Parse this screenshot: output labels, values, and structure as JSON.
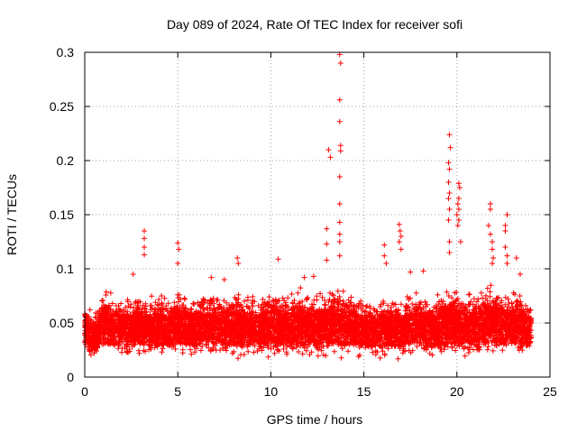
{
  "chart_data": {
    "type": "scatter",
    "title": "Day 089 of 2024, Rate Of TEC Index for receiver sofi",
    "xlabel": "GPS time / hours",
    "ylabel": "ROTI / TECUs",
    "xlim": [
      0,
      25
    ],
    "ylim": [
      0,
      0.3
    ],
    "xticks": [
      "0",
      "5",
      "10",
      "15",
      "20",
      "25"
    ],
    "yticks": [
      "0",
      "0.05",
      "0.1",
      "0.15",
      "0.2",
      "0.25",
      "0.3"
    ],
    "grid": true,
    "marker": "+",
    "color": "#ff0000",
    "series": [
      {
        "name": "ROTI",
        "band": {
          "x": [
            0,
            0.5,
            1,
            1.5,
            2,
            2.5,
            3,
            3.5,
            4,
            4.5,
            5,
            5.5,
            6,
            6.5,
            7,
            7.5,
            8,
            8.5,
            9,
            9.5,
            10,
            10.5,
            11,
            11.5,
            12,
            12.5,
            13,
            13.5,
            14,
            14.5,
            15,
            15.5,
            16,
            16.5,
            17,
            17.5,
            18,
            18.5,
            19,
            19.5,
            20,
            20.5,
            21,
            21.5,
            22,
            22.5,
            23,
            23.5,
            24
          ],
          "low": [
            0.02,
            0.015,
            0.015,
            0.015,
            0.015,
            0.015,
            0.015,
            0.015,
            0.015,
            0.012,
            0.015,
            0.015,
            0.015,
            0.015,
            0.015,
            0.015,
            0.015,
            0.015,
            0.015,
            0.015,
            0.015,
            0.015,
            0.015,
            0.015,
            0.015,
            0.015,
            0.015,
            0.015,
            0.015,
            0.015,
            0.015,
            0.015,
            0.012,
            0.015,
            0.015,
            0.015,
            0.015,
            0.015,
            0.012,
            0.015,
            0.015,
            0.015,
            0.015,
            0.015,
            0.015,
            0.015,
            0.015,
            0.015,
            0.018
          ],
          "high": [
            0.072,
            0.06,
            0.085,
            0.08,
            0.075,
            0.078,
            0.082,
            0.075,
            0.08,
            0.078,
            0.085,
            0.08,
            0.075,
            0.08,
            0.085,
            0.08,
            0.083,
            0.078,
            0.082,
            0.08,
            0.085,
            0.082,
            0.08,
            0.085,
            0.078,
            0.08,
            0.085,
            0.088,
            0.085,
            0.08,
            0.075,
            0.07,
            0.085,
            0.078,
            0.075,
            0.08,
            0.082,
            0.08,
            0.085,
            0.088,
            0.085,
            0.082,
            0.085,
            0.088,
            0.09,
            0.085,
            0.085,
            0.08,
            0.072
          ]
        },
        "peaks": [
          {
            "x": 3.2,
            "y": 0.135
          },
          {
            "x": 3.2,
            "y": 0.128
          },
          {
            "x": 3.2,
            "y": 0.12
          },
          {
            "x": 3.2,
            "y": 0.113
          },
          {
            "x": 5.0,
            "y": 0.124
          },
          {
            "x": 5.05,
            "y": 0.118
          },
          {
            "x": 5.0,
            "y": 0.105
          },
          {
            "x": 8.2,
            "y": 0.11
          },
          {
            "x": 8.25,
            "y": 0.105
          },
          {
            "x": 10.4,
            "y": 0.109
          },
          {
            "x": 13.1,
            "y": 0.21
          },
          {
            "x": 13.2,
            "y": 0.203
          },
          {
            "x": 13.7,
            "y": 0.298
          },
          {
            "x": 13.75,
            "y": 0.29
          },
          {
            "x": 13.7,
            "y": 0.256
          },
          {
            "x": 13.7,
            "y": 0.236
          },
          {
            "x": 13.75,
            "y": 0.214
          },
          {
            "x": 13.75,
            "y": 0.209
          },
          {
            "x": 13.7,
            "y": 0.185
          },
          {
            "x": 13.7,
            "y": 0.16
          },
          {
            "x": 13.7,
            "y": 0.143
          },
          {
            "x": 13.7,
            "y": 0.132
          },
          {
            "x": 13.7,
            "y": 0.125
          },
          {
            "x": 13.7,
            "y": 0.112
          },
          {
            "x": 13.0,
            "y": 0.137
          },
          {
            "x": 13.0,
            "y": 0.123
          },
          {
            "x": 13.0,
            "y": 0.108
          },
          {
            "x": 16.1,
            "y": 0.122
          },
          {
            "x": 16.1,
            "y": 0.112
          },
          {
            "x": 16.2,
            "y": 0.105
          },
          {
            "x": 16.9,
            "y": 0.141
          },
          {
            "x": 16.95,
            "y": 0.135
          },
          {
            "x": 17.0,
            "y": 0.13
          },
          {
            "x": 16.9,
            "y": 0.125
          },
          {
            "x": 17.0,
            "y": 0.118
          },
          {
            "x": 19.6,
            "y": 0.224
          },
          {
            "x": 19.65,
            "y": 0.212
          },
          {
            "x": 19.55,
            "y": 0.198
          },
          {
            "x": 19.6,
            "y": 0.192
          },
          {
            "x": 19.55,
            "y": 0.18
          },
          {
            "x": 19.6,
            "y": 0.17
          },
          {
            "x": 19.55,
            "y": 0.165
          },
          {
            "x": 19.6,
            "y": 0.155
          },
          {
            "x": 19.55,
            "y": 0.145
          },
          {
            "x": 19.6,
            "y": 0.125
          },
          {
            "x": 19.6,
            "y": 0.115
          },
          {
            "x": 20.1,
            "y": 0.179
          },
          {
            "x": 20.15,
            "y": 0.175
          },
          {
            "x": 20.1,
            "y": 0.165
          },
          {
            "x": 20.05,
            "y": 0.16
          },
          {
            "x": 20.1,
            "y": 0.155
          },
          {
            "x": 20.0,
            "y": 0.15
          },
          {
            "x": 20.1,
            "y": 0.145
          },
          {
            "x": 20.05,
            "y": 0.14
          },
          {
            "x": 20.2,
            "y": 0.125
          },
          {
            "x": 21.8,
            "y": 0.16
          },
          {
            "x": 21.8,
            "y": 0.155
          },
          {
            "x": 21.7,
            "y": 0.14
          },
          {
            "x": 21.8,
            "y": 0.132
          },
          {
            "x": 21.9,
            "y": 0.125
          },
          {
            "x": 21.9,
            "y": 0.118
          },
          {
            "x": 21.95,
            "y": 0.11
          },
          {
            "x": 21.9,
            "y": 0.105
          },
          {
            "x": 22.6,
            "y": 0.14
          },
          {
            "x": 22.6,
            "y": 0.135
          },
          {
            "x": 22.6,
            "y": 0.12
          },
          {
            "x": 22.7,
            "y": 0.112
          },
          {
            "x": 22.7,
            "y": 0.105
          },
          {
            "x": 22.7,
            "y": 0.15
          },
          {
            "x": 2.6,
            "y": 0.095
          },
          {
            "x": 6.8,
            "y": 0.092
          },
          {
            "x": 7.5,
            "y": 0.09
          },
          {
            "x": 11.8,
            "y": 0.092
          },
          {
            "x": 12.3,
            "y": 0.093
          },
          {
            "x": 18.2,
            "y": 0.098
          },
          {
            "x": 17.5,
            "y": 0.097
          },
          {
            "x": 23.2,
            "y": 0.11
          },
          {
            "x": 23.4,
            "y": 0.095
          }
        ]
      }
    ]
  }
}
